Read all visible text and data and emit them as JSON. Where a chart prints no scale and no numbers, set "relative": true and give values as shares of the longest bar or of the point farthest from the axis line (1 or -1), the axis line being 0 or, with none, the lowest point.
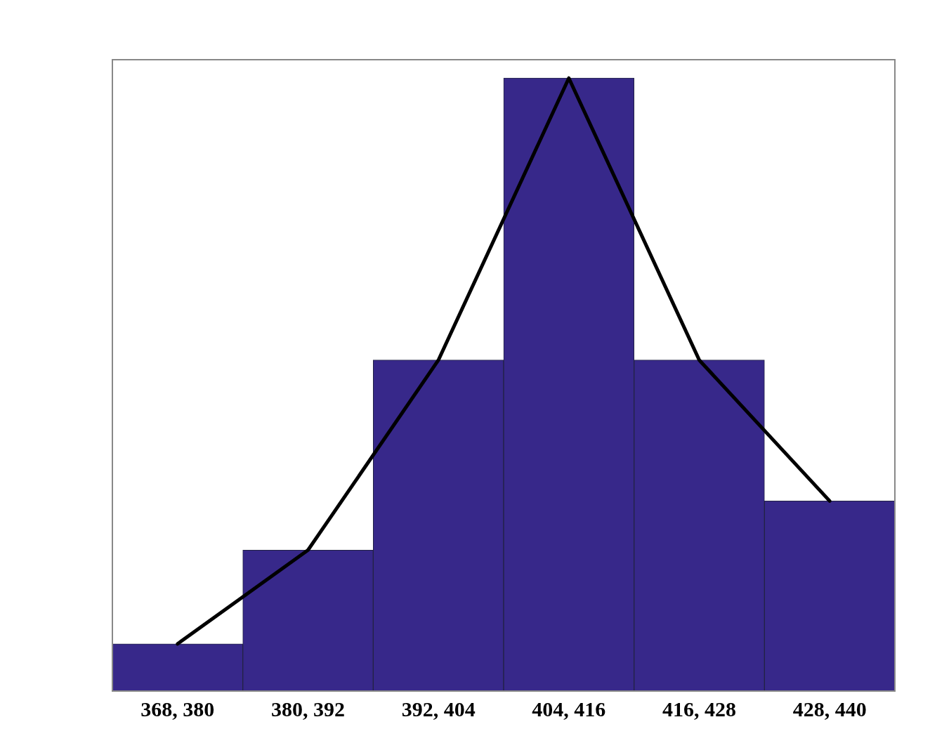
{
  "chart_data": {
    "type": "bar",
    "categories": [
      "368, 380",
      "380, 392",
      "392, 404",
      "404, 416",
      "416, 428",
      "428, 440"
    ],
    "relative": true,
    "tick_labels": "x",
    "legend": false,
    "grid": false,
    "marker": "none",
    "series": [
      {
        "color": "#37288a",
        "values": [
          0.077,
          0.23,
          0.54,
          1,
          0.54,
          0.31
        ]
      },
      {
        "type": "line",
        "color": "#000000",
        "values": [
          0.077,
          0.23,
          0.54,
          1,
          0.54,
          0.31
        ]
      }
    ]
  }
}
